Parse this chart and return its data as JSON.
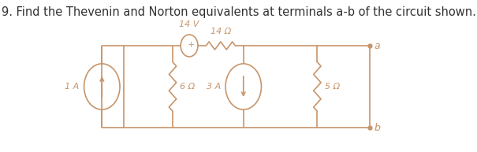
{
  "title": "9. Find the Thevenin and Norton equivalents at terminals a-b of the circuit shown.",
  "title_fontsize": 10.5,
  "line_color": "#c8956a",
  "bg_color": "#ffffff",
  "circuit": {
    "resistor_14_label": "14 Ω",
    "resistor_6_label": "6 Ω",
    "resistor_5_label": "5 Ω",
    "vs_label": "14 V",
    "cs1_label": "1 A",
    "cs2_label": "3 A",
    "terminal_a_label": "a",
    "terminal_b_label": "b"
  }
}
